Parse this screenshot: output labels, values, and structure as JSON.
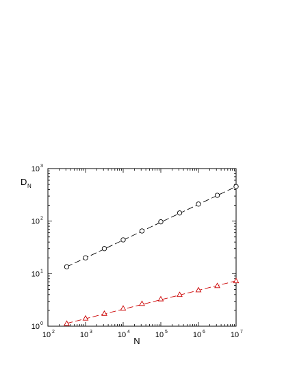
{
  "chart_data": {
    "type": "scatter",
    "xscale": "log",
    "yscale": "log",
    "xlim": [
      100,
      10000000
    ],
    "ylim": [
      1,
      1000
    ],
    "x_tick_base": "10",
    "x_tick_exponents": [
      "2",
      "3",
      "4",
      "5",
      "6",
      "7"
    ],
    "y_tick_base": "10",
    "y_tick_exponents": [
      "0",
      "1",
      "2",
      "3"
    ],
    "xlabel": "N",
    "ylabel": {
      "main": "D",
      "sub": "N"
    },
    "grid": false,
    "series": [
      {
        "marker": "circle",
        "color": "#000000",
        "line": "dashed fit",
        "x": [
          316,
          1000,
          3162,
          10000,
          31623,
          100000,
          316228,
          1000000,
          3162278,
          10000000
        ],
        "y": [
          13.5,
          20,
          30,
          44,
          65,
          97,
          143,
          211,
          310,
          455
        ]
      },
      {
        "marker": "triangle",
        "color": "#cc0000",
        "line": "dashed fit",
        "x": [
          316,
          1000,
          3162,
          10000,
          31623,
          100000,
          316228,
          1000000,
          3162278,
          10000000
        ],
        "y": [
          1.13,
          1.42,
          1.75,
          2.2,
          2.7,
          3.3,
          4.0,
          4.9,
          5.9,
          7.3
        ]
      }
    ]
  }
}
